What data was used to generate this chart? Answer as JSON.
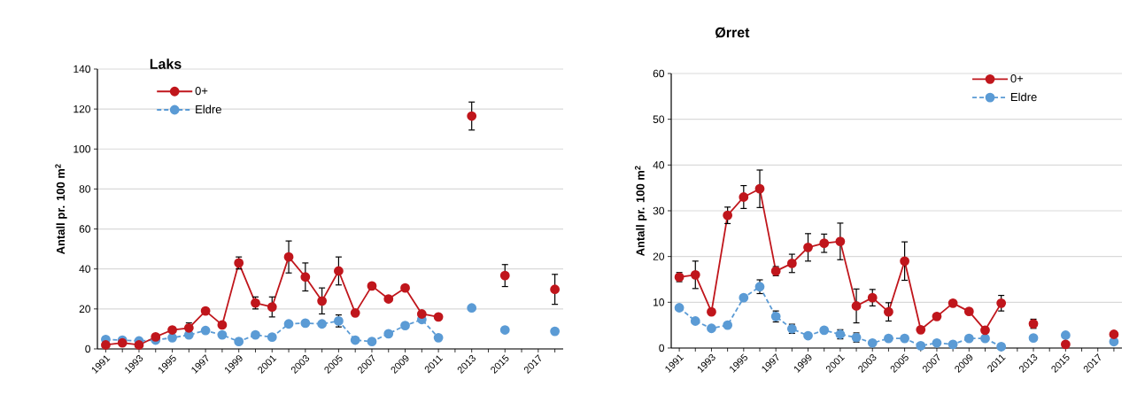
{
  "chart_data": [
    {
      "type": "line",
      "title": "Laks",
      "ylabel": "Antall pr. 100 m$^{2}$",
      "categories": [
        "1991",
        null,
        "1993",
        null,
        "1995",
        null,
        "1997",
        null,
        "1999",
        null,
        "2001",
        null,
        "2003",
        null,
        "2005",
        null,
        "2007",
        null,
        "2009",
        null,
        "2011",
        null,
        "2013",
        null,
        "2015",
        null,
        "2017",
        null
      ],
      "ylim": [
        0,
        140
      ],
      "yticks": [
        0,
        20,
        40,
        60,
        80,
        100,
        120,
        140
      ],
      "grid": "y",
      "legend": "top left",
      "marker": "circle",
      "series": [
        {
          "name": "0+",
          "color": "#c0161c",
          "line_style": "solid",
          "values": [
            2,
            3,
            2,
            6,
            9.5,
            10.5,
            19,
            12,
            43,
            23,
            21,
            46,
            36,
            24,
            39,
            18,
            31.5,
            25,
            30.5,
            17.5,
            16,
            null,
            116.5,
            null,
            36.7,
            null,
            null,
            29.8
          ],
          "errors": [
            null,
            null,
            null,
            null,
            null,
            2.5,
            null,
            null,
            3,
            3,
            5,
            8,
            7,
            6.5,
            7,
            null,
            null,
            null,
            null,
            null,
            null,
            null,
            7,
            null,
            5.5,
            null,
            null,
            7.5
          ]
        },
        {
          "name": "Eldre",
          "color": "#5b9bd5",
          "line_style": "dashed",
          "values": [
            4.7,
            4.4,
            4,
            4.4,
            5.6,
            7,
            9.2,
            7,
            3.7,
            7,
            5.9,
            12.5,
            12.9,
            12.5,
            14,
            4.4,
            3.7,
            7.6,
            11.7,
            14.7,
            5.6,
            null,
            20.5,
            null,
            9.5,
            null,
            null,
            8.8
          ],
          "errors": [
            null,
            null,
            null,
            null,
            null,
            null,
            null,
            null,
            null,
            null,
            null,
            null,
            null,
            null,
            3,
            null,
            null,
            null,
            null,
            null,
            null,
            null,
            null,
            null,
            null,
            null,
            null,
            null
          ]
        }
      ]
    },
    {
      "type": "line",
      "title": "Ørret",
      "ylabel": "Antall pr. 100 m$^{2}$",
      "categories": [
        "1991",
        null,
        "1993",
        null,
        "1995",
        null,
        "1997",
        null,
        "1999",
        null,
        "2001",
        null,
        "2003",
        null,
        "2005",
        null,
        "2007",
        null,
        "2009",
        null,
        "2011",
        null,
        "2013",
        null,
        "2015",
        null,
        "2017",
        null
      ],
      "ylim": [
        0,
        60
      ],
      "yticks": [
        0,
        10,
        20,
        30,
        40,
        50,
        60
      ],
      "grid": "y",
      "legend": "top right",
      "marker": "circle",
      "series": [
        {
          "name": "0+",
          "color": "#c0161c",
          "line_style": "solid",
          "values": [
            15.5,
            16,
            7.9,
            29,
            33,
            34.8,
            16.8,
            18.5,
            22,
            22.9,
            23.3,
            9.2,
            11,
            7.9,
            19,
            4,
            6.9,
            9.8,
            8,
            3.9,
            9.8,
            null,
            5.3,
            null,
            0.8,
            null,
            null,
            3
          ],
          "errors": [
            1,
            3,
            null,
            1.8,
            2.5,
            4.1,
            1,
            2,
            3,
            2,
            4,
            3.7,
            1.8,
            2,
            4.2,
            null,
            null,
            null,
            null,
            null,
            1.7,
            null,
            1,
            null,
            null,
            null,
            null,
            null
          ]
        },
        {
          "name": "Eldre",
          "color": "#5b9bd5",
          "line_style": "dashed",
          "values": [
            8.8,
            5.9,
            4.3,
            5,
            11,
            13.4,
            6.9,
            4.2,
            2.7,
            3.9,
            3,
            2.3,
            1.1,
            2.1,
            2.1,
            0.5,
            1.1,
            0.8,
            2.1,
            2.1,
            0.3,
            null,
            2.2,
            null,
            2.8,
            null,
            null,
            1.4
          ],
          "errors": [
            null,
            null,
            null,
            null,
            null,
            1.5,
            1.2,
            1,
            null,
            null,
            1,
            1,
            null,
            null,
            null,
            null,
            null,
            null,
            null,
            null,
            null,
            null,
            null,
            null,
            null,
            null,
            null,
            null
          ]
        }
      ]
    }
  ]
}
